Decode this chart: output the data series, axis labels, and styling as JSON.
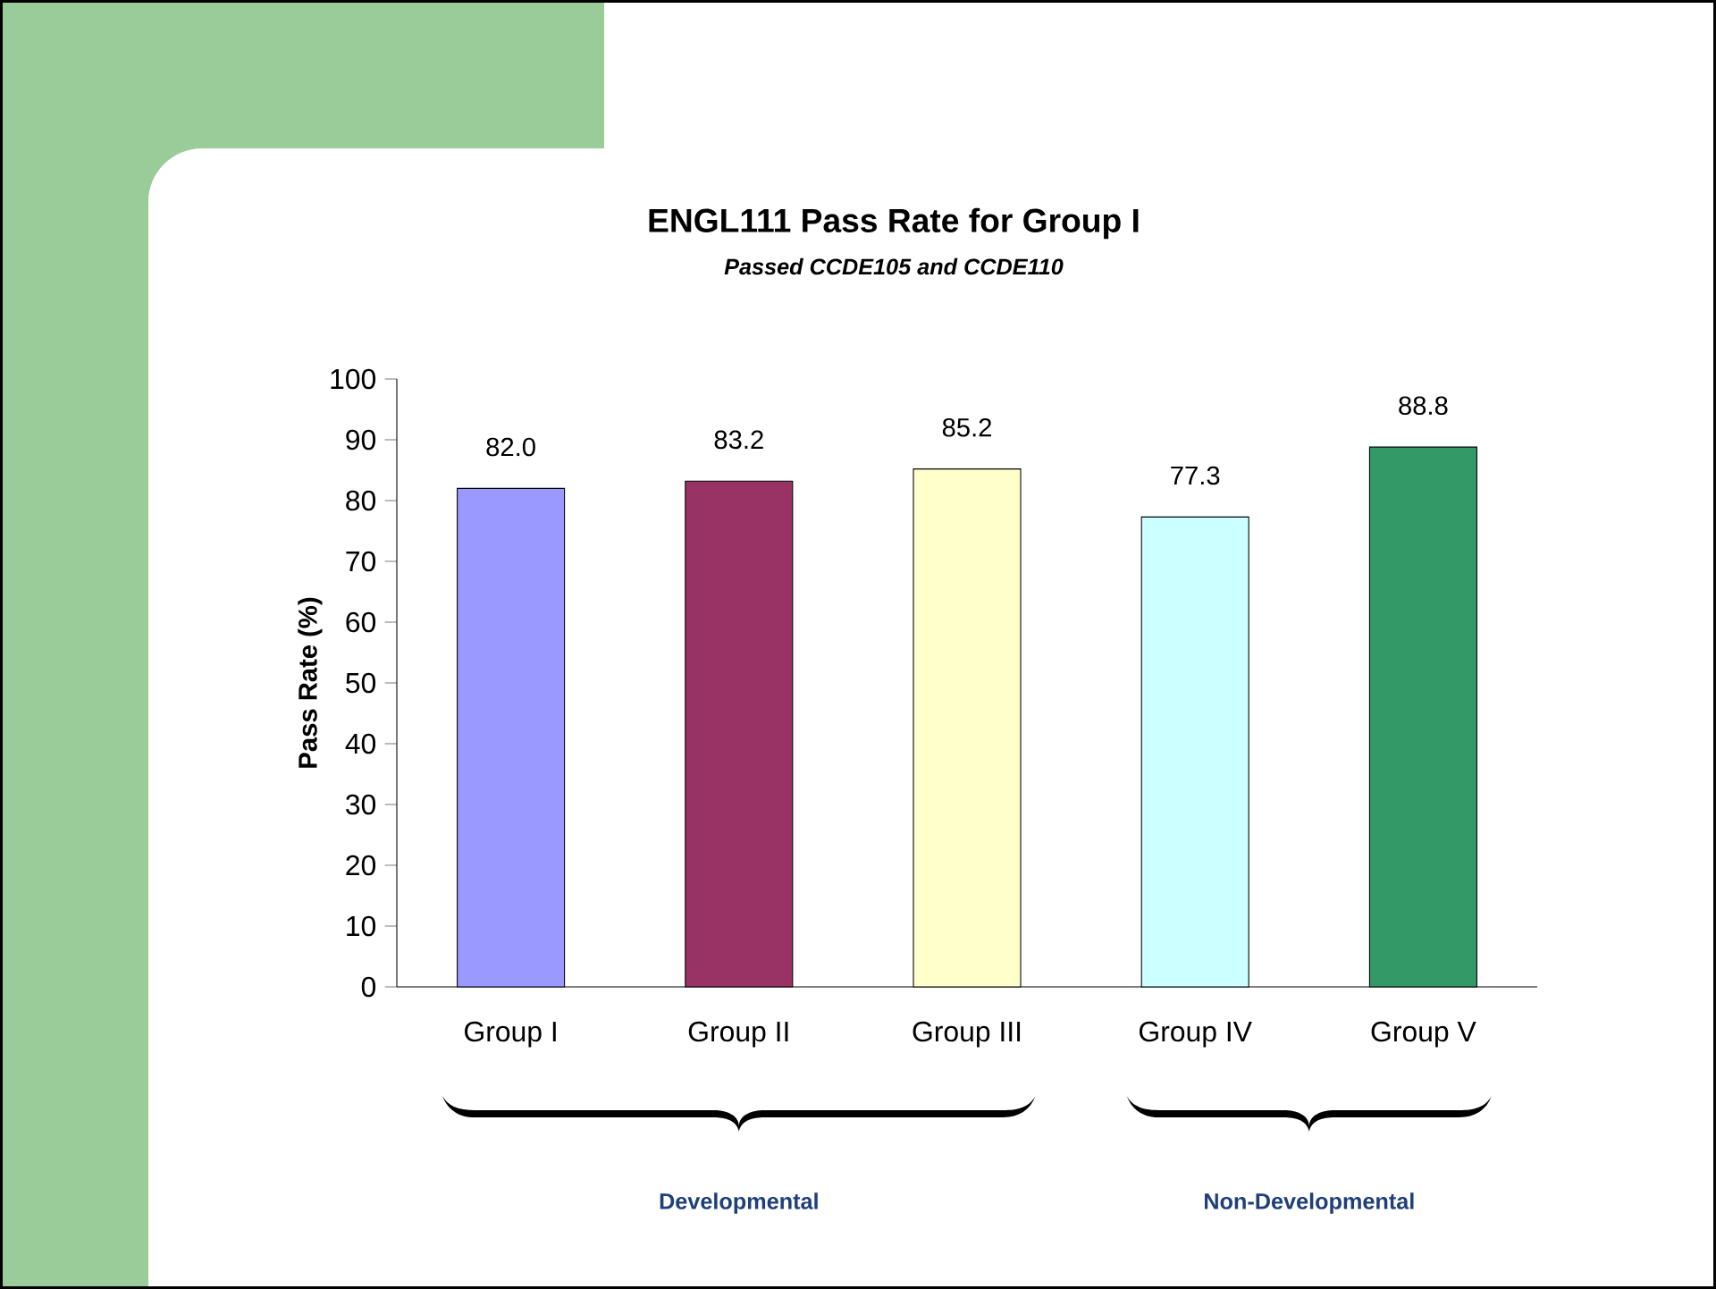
{
  "chart_data": {
    "type": "bar",
    "title": "ENGL111 Pass Rate for Group I",
    "subtitle": "Passed CCDE105 and CCDE110",
    "ylabel": "Pass Rate (%)",
    "categories": [
      "Group I",
      "Group II",
      "Group III",
      "Group IV",
      "Group V"
    ],
    "values": [
      82.0,
      83.2,
      85.2,
      77.3,
      88.8
    ],
    "colors": [
      "#9999ff",
      "#993366",
      "#ffffcc",
      "#ccffff",
      "#339966"
    ],
    "value_labels": [
      "82.0",
      "83.2",
      "85.2",
      "77.3",
      "88.8"
    ],
    "ylim": [
      0,
      100
    ],
    "yticks": [
      0,
      10,
      20,
      30,
      40,
      50,
      60,
      70,
      80,
      90,
      100
    ],
    "annotations": [
      "Developmental",
      "Non-Developmental"
    ]
  }
}
